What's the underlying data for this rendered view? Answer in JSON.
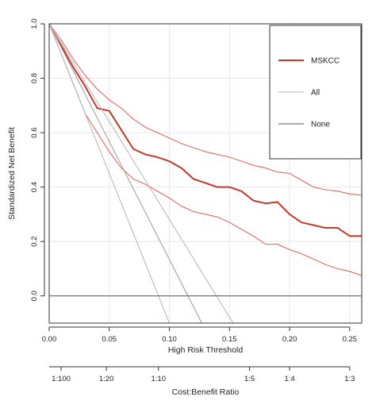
{
  "chart_data": {
    "type": "line",
    "title": "",
    "xlabel": "High Risk Threshold",
    "ylabel": "Standardized Net Benefit",
    "xlim": [
      0,
      0.26
    ],
    "ylim": [
      -0.1,
      1.0
    ],
    "x_ticks": [
      "0.00",
      "0.05",
      "0.10",
      "0.15",
      "0.20",
      "0.25"
    ],
    "x_tick_values": [
      0,
      0.05,
      0.1,
      0.15,
      0.2,
      0.25
    ],
    "y_ticks": [
      "0.0",
      "0.2",
      "0.4",
      "0.6",
      "0.8",
      "1.0"
    ],
    "y_tick_values": [
      0,
      0.2,
      0.4,
      0.6,
      0.8,
      1.0
    ],
    "grid": true,
    "legend_position": "top-right",
    "secondary_axis": {
      "label": "Cost:Benefit Ratio",
      "ticks": [
        "1:100",
        "1:20",
        "1:10",
        "1:5",
        "1:4",
        "1:3"
      ],
      "tick_thresholds": [
        0.0099,
        0.0476,
        0.0909,
        0.1667,
        0.2,
        0.25
      ]
    },
    "series": [
      {
        "name": "MSKCC",
        "color": "#c0392b",
        "width": 2,
        "x": [
          0,
          0.01,
          0.02,
          0.03,
          0.04,
          0.05,
          0.06,
          0.07,
          0.08,
          0.09,
          0.1,
          0.11,
          0.12,
          0.13,
          0.14,
          0.15,
          0.16,
          0.17,
          0.18,
          0.19,
          0.2,
          0.21,
          0.22,
          0.23,
          0.24,
          0.25,
          0.26
        ],
        "values": [
          1.0,
          0.92,
          0.84,
          0.77,
          0.69,
          0.68,
          0.61,
          0.54,
          0.52,
          0.51,
          0.495,
          0.47,
          0.43,
          0.415,
          0.4,
          0.4,
          0.385,
          0.35,
          0.34,
          0.345,
          0.3,
          0.27,
          0.26,
          0.25,
          0.25,
          0.22,
          0.22
        ]
      },
      {
        "name": "",
        "color": "#e05a4f",
        "width": 1,
        "x": [
          0,
          0.01,
          0.02,
          0.03,
          0.04,
          0.05,
          0.06,
          0.07,
          0.08,
          0.09,
          0.1,
          0.11,
          0.12,
          0.13,
          0.14,
          0.15,
          0.16,
          0.17,
          0.18,
          0.19,
          0.2,
          0.21,
          0.22,
          0.23,
          0.24,
          0.25,
          0.26
        ],
        "values": [
          1.0,
          0.94,
          0.87,
          0.81,
          0.76,
          0.72,
          0.69,
          0.65,
          0.62,
          0.6,
          0.58,
          0.56,
          0.545,
          0.53,
          0.52,
          0.51,
          0.495,
          0.48,
          0.47,
          0.455,
          0.45,
          0.425,
          0.4,
          0.39,
          0.385,
          0.375,
          0.37
        ]
      },
      {
        "name": "",
        "color": "#e05a4f",
        "width": 1,
        "x": [
          0,
          0.01,
          0.02,
          0.03,
          0.04,
          0.05,
          0.06,
          0.07,
          0.08,
          0.09,
          0.1,
          0.11,
          0.12,
          0.13,
          0.14,
          0.15,
          0.16,
          0.17,
          0.18,
          0.19,
          0.2,
          0.21,
          0.22,
          0.23,
          0.24,
          0.25,
          0.26
        ],
        "values": [
          1.0,
          0.89,
          0.78,
          0.67,
          0.6,
          0.53,
          0.47,
          0.43,
          0.41,
          0.385,
          0.36,
          0.33,
          0.31,
          0.3,
          0.29,
          0.27,
          0.245,
          0.22,
          0.19,
          0.19,
          0.17,
          0.155,
          0.135,
          0.115,
          0.1,
          0.09,
          0.075
        ]
      },
      {
        "name": "All",
        "color": "#b5b5b5",
        "width": 1,
        "x": [
          0,
          0.1
        ],
        "values": [
          1.0,
          -0.1
        ]
      },
      {
        "name": "",
        "color": "#9a9a9a",
        "width": 1,
        "x": [
          0,
          0.127
        ],
        "values": [
          1.0,
          -0.1
        ]
      },
      {
        "name": "",
        "color": "#b5b5b5",
        "width": 1,
        "x": [
          0,
          0.153
        ],
        "values": [
          1.0,
          -0.1
        ]
      },
      {
        "name": "None",
        "color": "#555555",
        "width": 1,
        "x": [
          0,
          0.26
        ],
        "values": [
          0,
          0
        ]
      }
    ],
    "legend": [
      {
        "label": "MSKCC",
        "color": "#c0392b",
        "width": 2
      },
      {
        "label": "All",
        "color": "#b5b5b5",
        "width": 1
      },
      {
        "label": "None",
        "color": "#555555",
        "width": 1
      }
    ]
  }
}
